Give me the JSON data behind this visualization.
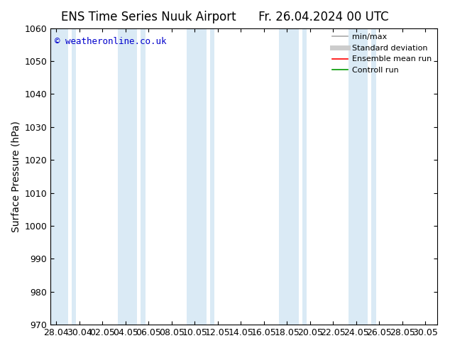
{
  "title_left": "ENS Time Series Nuuk Airport",
  "title_right": "Fr. 26.04.2024 00 UTC",
  "ylabel": "Surface Pressure (hPa)",
  "ylim": [
    970,
    1060
  ],
  "yticks": [
    970,
    980,
    990,
    1000,
    1010,
    1020,
    1030,
    1040,
    1050,
    1060
  ],
  "copyright_text": "© weatheronline.co.uk",
  "copyright_color": "#0000cc",
  "background_color": "#ffffff",
  "plot_bg_color": "#ffffff",
  "band_color": "#daeaf5",
  "title_fontsize": 12,
  "axis_label_fontsize": 10,
  "tick_fontsize": 9,
  "x_tick_labels": [
    "28.04",
    "30.04",
    "02.05",
    "04.05",
    "06.05",
    "08.05",
    "10.05",
    "12.05",
    "14.05",
    "16.05",
    "18.05",
    "20.05",
    "22.05",
    "24.05",
    "26.05",
    "28.05",
    "30.05"
  ],
  "x_tick_positions": [
    0,
    2,
    4,
    6,
    8,
    10,
    12,
    14,
    16,
    18,
    20,
    22,
    24,
    26,
    28,
    30,
    32
  ],
  "xlim": [
    -0.5,
    33
  ],
  "bands": [
    {
      "start": -0.5,
      "end": 1.0
    },
    {
      "start": 1.3,
      "end": 1.7
    },
    {
      "start": 5.3,
      "end": 7.0
    },
    {
      "start": 7.3,
      "end": 7.7
    },
    {
      "start": 11.3,
      "end": 13.0
    },
    {
      "start": 13.3,
      "end": 13.7
    },
    {
      "start": 19.3,
      "end": 21.0
    },
    {
      "start": 21.3,
      "end": 21.7
    },
    {
      "start": 25.3,
      "end": 27.0
    },
    {
      "start": 27.3,
      "end": 27.7
    }
  ],
  "legend_items": [
    {
      "label": "min/max",
      "color": "#aaaaaa",
      "lw": 1.2,
      "style": "-"
    },
    {
      "label": "Standard deviation",
      "color": "#cccccc",
      "lw": 5,
      "style": "-"
    },
    {
      "label": "Ensemble mean run",
      "color": "#ff0000",
      "lw": 1.2,
      "style": "-"
    },
    {
      "label": "Controll run",
      "color": "#009900",
      "lw": 1.2,
      "style": "-"
    }
  ]
}
